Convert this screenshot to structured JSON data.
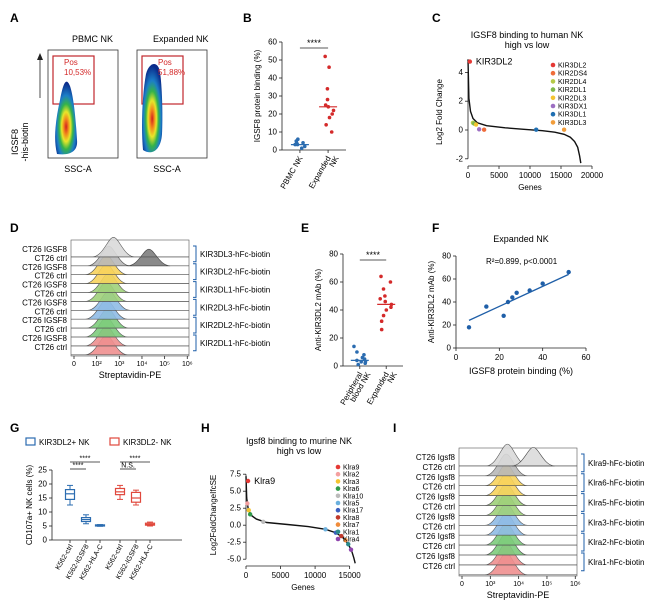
{
  "panels": [
    "A",
    "B",
    "C",
    "D",
    "E",
    "F",
    "G",
    "H",
    "I"
  ],
  "panel_a": {
    "plots": [
      {
        "title": "PBMC NK",
        "gate_label": "Pos",
        "gate_value": "10,53%"
      },
      {
        "title": "Expanded NK",
        "gate_label": "Pos",
        "gate_value": "51,88%"
      }
    ],
    "ylabel_line1": "IGSF8",
    "ylabel_line2": "-his-biotin",
    "xlabel": "SSC-A"
  },
  "panel_d": {
    "rows": [
      "CT26 IGSF8",
      "CT26 ctrl",
      "CT26 IGSF8",
      "CT26 ctrl",
      "CT26 IGSF8",
      "CT26 ctrl",
      "CT26 IGSF8",
      "CT26 ctrl",
      "CT26 IGSF8",
      "CT26 ctrl",
      "CT26 IGSF8",
      "CT26 ctrl"
    ],
    "groups": [
      "KIR3DL3-hFc-biotin",
      "KIR3DL2-hFc-biotin",
      "KIR3DL1-hFc-biotin",
      "KIR2DL3-hFc-biotin",
      "KIR2DL2-hFc-biotin",
      "KIR2DL1-hFc-biotin"
    ],
    "xlabel": "Streptavidin-PE",
    "ticks": [
      "0",
      "10²",
      "10³",
      "10⁴",
      "10⁵",
      "10⁶"
    ]
  },
  "panel_i": {
    "rows": [
      "CT26 Igsf8",
      "CT26 ctrl",
      "CT26 Igsf8",
      "CT26 ctrl",
      "CT26 Igsf8",
      "CT26 ctrl",
      "CT26 Igsf8",
      "CT26 ctrl",
      "CT26 Igsf8",
      "CT26 ctrl",
      "CT26 Igsf8",
      "CT26 ctrl"
    ],
    "groups": [
      "Klra9-hFc-biotin",
      "Klra6-hFc-biotin",
      "Klra5-hFc-biotin",
      "Klra3-hFc-biotin",
      "Klra2-hFc-biotin",
      "Klra1-hFc-biotin"
    ],
    "xlabel": "Streptavidin-PE",
    "ticks": [
      "0",
      "10³",
      "10⁴",
      "10⁵",
      "10⁶"
    ]
  },
  "chart_data": [
    {
      "id": "B",
      "type": "scatter",
      "ylabel": "IGSF8 protein binding (%)",
      "categories": [
        "PBMC NK",
        "Expanded NK"
      ],
      "yticks": [
        0,
        10,
        20,
        30,
        40,
        50,
        60
      ],
      "ylim": [
        0,
        60
      ],
      "values": [
        [
          1,
          2,
          3,
          3,
          4,
          4,
          5,
          6
        ],
        [
          10,
          14,
          18,
          20,
          22,
          24,
          25,
          28,
          34,
          46,
          52
        ]
      ],
      "medians": [
        3,
        24
      ],
      "significance": "****"
    },
    {
      "id": "C",
      "type": "line",
      "title": "IGSF8 binding to human NK",
      "subtitle": "high vs low",
      "xlabel": "Genes",
      "ylabel": "Log2 Fold Change",
      "xticks": [
        0,
        5000,
        10000,
        15000,
        20000
      ],
      "xlim": [
        0,
        20000
      ],
      "yticks": [
        -2,
        0,
        2,
        4
      ],
      "ylim": [
        -2.5,
        5
      ],
      "curve_x": [
        0,
        150,
        400,
        800,
        1500,
        3000,
        6000,
        9000,
        12000,
        14000,
        15500,
        16500,
        17200,
        17700,
        18000,
        18200
      ],
      "curve_y": [
        4.9,
        2.2,
        1.3,
        0.8,
        0.5,
        0.3,
        0.15,
        0.05,
        -0.05,
        -0.15,
        -0.3,
        -0.5,
        -0.8,
        -1.2,
        -1.8,
        -2.3
      ],
      "highlight": {
        "label": "KIR3DL2",
        "x": 300,
        "y": 4.75
      },
      "legend": [
        "KIR3DL2",
        "KIR2DS4",
        "KIR2DL4",
        "KIR2DL1",
        "KIR2DL3",
        "KIR3DX1",
        "KIR3DL1",
        "KIR3DL3"
      ],
      "legend_colors": [
        "#e53935",
        "#ef6c3a",
        "#b5c948",
        "#7fb84a",
        "#f4c430",
        "#9c6fc2",
        "#1f6fb2",
        "#f29d3a"
      ],
      "points": [
        {
          "name": "KIR3DL2",
          "x": 300,
          "y": 4.75
        },
        {
          "name": "KIR2DS4",
          "x": 2600,
          "y": 0.02
        },
        {
          "name": "KIR2DL4",
          "x": 800,
          "y": 0.5
        },
        {
          "name": "KIR2DL1",
          "x": 1000,
          "y": 0.45
        },
        {
          "name": "KIR2DL3",
          "x": 1300,
          "y": 0.38
        },
        {
          "name": "KIR3DX1",
          "x": 1800,
          "y": 0.05
        },
        {
          "name": "KIR3DL1",
          "x": 11000,
          "y": 0.02
        },
        {
          "name": "KIR3DL3",
          "x": 15500,
          "y": 0.02
        }
      ]
    },
    {
      "id": "E",
      "type": "scatter",
      "ylabel": "Anti-KIR3DL2 mAb (%)",
      "categories": [
        "Peripheral blood NK",
        "Expanded NK"
      ],
      "yticks": [
        0,
        20,
        40,
        60,
        80
      ],
      "ylim": [
        0,
        80
      ],
      "values": [
        [
          1,
          2,
          3,
          3,
          4,
          5,
          6,
          8,
          10,
          14
        ],
        [
          26,
          32,
          36,
          40,
          42,
          44,
          46,
          48,
          50,
          55,
          60,
          64
        ]
      ],
      "medians": [
        4,
        44
      ],
      "significance": "****"
    },
    {
      "id": "F",
      "type": "scatter",
      "title": "Expanded NK",
      "xlabel": "IGSF8 protein binding (%)",
      "ylabel": "Anti-KIR3DL2 mAb (%)",
      "xticks": [
        0,
        20,
        40,
        60
      ],
      "xlim": [
        0,
        60
      ],
      "yticks": [
        0,
        20,
        40,
        60,
        80
      ],
      "ylim": [
        0,
        80
      ],
      "x": [
        6,
        14,
        22,
        24,
        26,
        28,
        34,
        40,
        52
      ],
      "y": [
        18,
        36,
        28,
        40,
        44,
        48,
        50,
        56,
        66
      ],
      "fit": {
        "x": [
          6,
          52
        ],
        "y": [
          24,
          64
        ]
      },
      "annotation": "R²=0.899, p<0.0001"
    },
    {
      "id": "G",
      "type": "box",
      "ylabel": "CD107a+ NK cells (%)",
      "legend": [
        "KIR3DL2+ NK",
        "KIR3DL2- NK"
      ],
      "legend_colors": [
        "#2b6cb0",
        "#e0483c"
      ],
      "categories": [
        "K562-ctrl",
        "K562-IGSF8",
        "K562-HLA-C",
        "K562-ctrl",
        "K562-IGSF8",
        "K562-HLA-C"
      ],
      "yticks": [
        0,
        5,
        10,
        15,
        20,
        25
      ],
      "ylim": [
        0,
        25
      ],
      "boxes": [
        {
          "group": 0,
          "min": 12.5,
          "q1": 14.5,
          "median": 16.5,
          "q3": 18,
          "max": 19.5
        },
        {
          "group": 0,
          "min": 5.8,
          "q1": 6.6,
          "median": 7.3,
          "q3": 8.0,
          "max": 9.0
        },
        {
          "group": 0,
          "min": 4.9,
          "q1": 5.0,
          "median": 5.2,
          "q3": 5.4,
          "max": 5.5
        },
        {
          "group": 1,
          "min": 14.5,
          "q1": 16.2,
          "median": 17.2,
          "q3": 18.4,
          "max": 19.5
        },
        {
          "group": 1,
          "min": 12.5,
          "q1": 13.5,
          "median": 15.0,
          "q3": 17.0,
          "max": 17.8
        },
        {
          "group": 1,
          "min": 5.0,
          "q1": 5.3,
          "median": 5.6,
          "q3": 6.0,
          "max": 6.4
        }
      ],
      "significance": [
        {
          "from": 0,
          "to": 1,
          "label": "****"
        },
        {
          "from": 0,
          "to": 2,
          "label": "****"
        },
        {
          "from": 3,
          "to": 4,
          "label": "N.S."
        },
        {
          "from": 3,
          "to": 5,
          "label": "****"
        }
      ]
    },
    {
      "id": "H",
      "type": "line",
      "title": "Igsf8 binding to murine NK",
      "subtitle": "high vs low",
      "xlabel": "Genes",
      "ylabel": "Log2FoldChangeIfcSE",
      "xticks": [
        0,
        5000,
        10000,
        15000
      ],
      "xlim": [
        0,
        16500
      ],
      "yticks": [
        -5.0,
        -2.5,
        0.0,
        2.5,
        5.0,
        7.5
      ],
      "ylim": [
        -6,
        9
      ],
      "curve_x": [
        0,
        100,
        300,
        700,
        1500,
        3000,
        6000,
        9000,
        11500,
        13000,
        14000,
        14800,
        15300,
        15600,
        15800
      ],
      "curve_y": [
        7.2,
        4.0,
        2.5,
        1.5,
        0.9,
        0.4,
        0.1,
        -0.2,
        -0.6,
        -1.1,
        -1.8,
        -2.8,
        -3.8,
        -4.8,
        -5.6
      ],
      "highlight": {
        "label": "Klra9",
        "x": 300,
        "y": 6.5
      },
      "legend": [
        "Klra9",
        "Klra2",
        "Klra3",
        "Klra6",
        "Klra10",
        "Klra5",
        "Klra17",
        "Klra8",
        "Klra7",
        "Klra1",
        "Klra4"
      ],
      "legend_colors": [
        "#e53935",
        "#f4a0a0",
        "#f4c430",
        "#2f9a4a",
        "#bbbbbb",
        "#6ab0de",
        "#3b5fbf",
        "#c0392b",
        "#f08c3a",
        "#2a8a8a",
        "#8e44ad"
      ],
      "points": [
        {
          "name": "Klra9",
          "x": 300,
          "y": 6.5
        },
        {
          "name": "Klra2",
          "x": 200,
          "y": 3.2
        },
        {
          "name": "Klra3",
          "x": 400,
          "y": 2.2
        },
        {
          "name": "Klra6",
          "x": 600,
          "y": 1.6
        },
        {
          "name": "Klra10",
          "x": 2500,
          "y": 0.5
        },
        {
          "name": "Klra5",
          "x": 11500,
          "y": -0.6
        },
        {
          "name": "Klra17",
          "x": 13000,
          "y": -1.1
        },
        {
          "name": "Klra8",
          "x": 13800,
          "y": -1.6
        },
        {
          "name": "Klra7",
          "x": 14400,
          "y": -2.2
        },
        {
          "name": "Klra1",
          "x": 14800,
          "y": -2.8
        },
        {
          "name": "Klra4",
          "x": 15200,
          "y": -3.6
        }
      ]
    }
  ]
}
